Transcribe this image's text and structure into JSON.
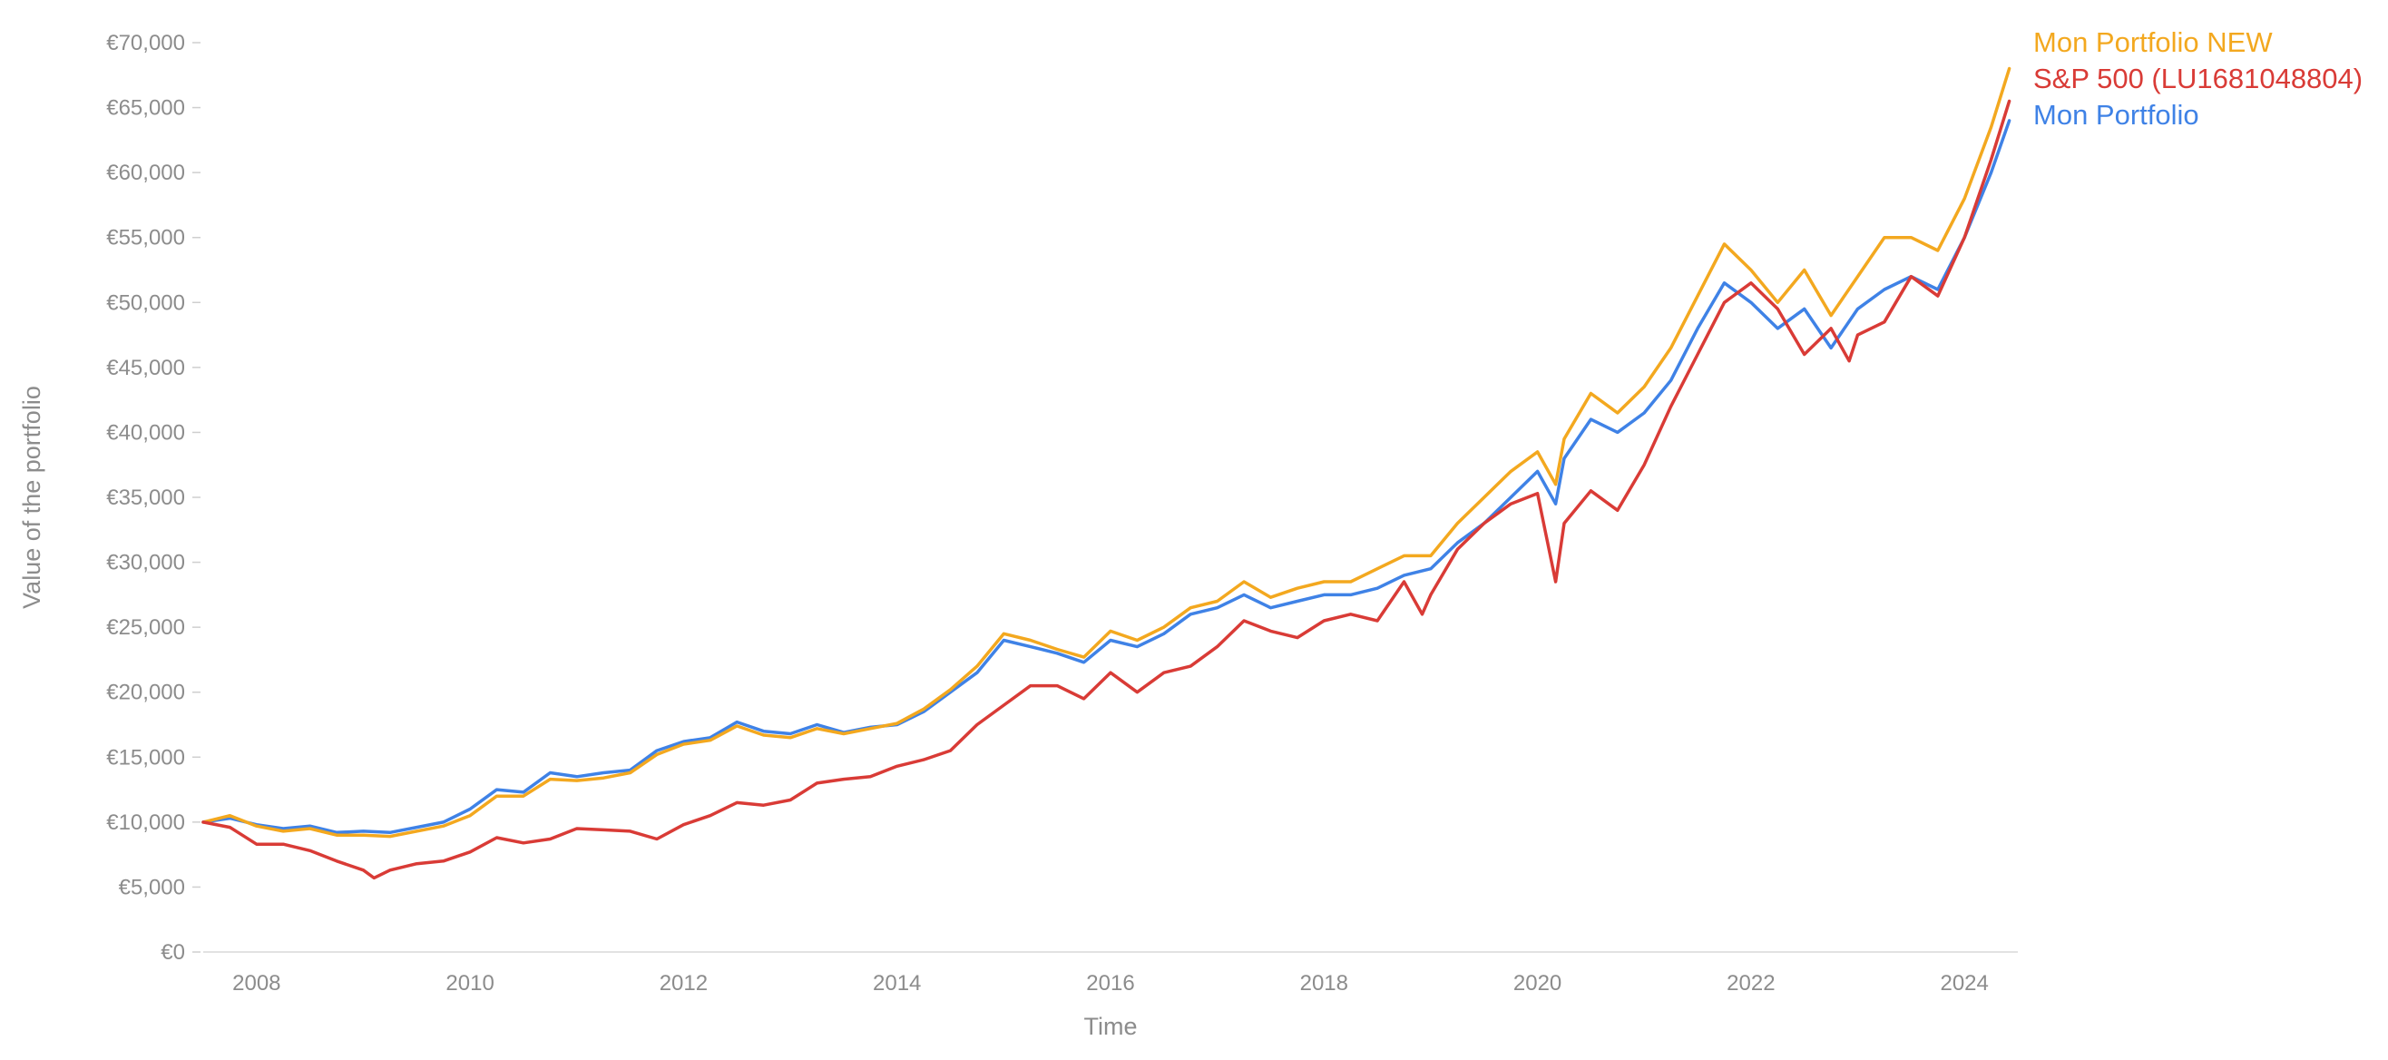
{
  "chart_data": {
    "type": "line",
    "title": "",
    "xlabel": "Time",
    "ylabel": "Value of the portfolio",
    "xlim": [
      2007.5,
      2024.5
    ],
    "ylim": [
      0,
      70000
    ],
    "grid": false,
    "legend_position": "right",
    "y_ticks": [
      0,
      5000,
      10000,
      15000,
      20000,
      25000,
      30000,
      35000,
      40000,
      45000,
      50000,
      55000,
      60000,
      65000,
      70000
    ],
    "y_tick_labels": [
      "€0",
      "€5,000",
      "€10,000",
      "€15,000",
      "€20,000",
      "€25,000",
      "€30,000",
      "€35,000",
      "€40,000",
      "€45,000",
      "€50,000",
      "€55,000",
      "€60,000",
      "€65,000",
      "€70,000"
    ],
    "x_ticks": [
      2008,
      2010,
      2012,
      2014,
      2016,
      2018,
      2020,
      2022,
      2024
    ],
    "x_tick_labels": [
      "2008",
      "2010",
      "2012",
      "2014",
      "2016",
      "2018",
      "2020",
      "2022",
      "2024"
    ],
    "series": [
      {
        "name": "Mon Portfolio",
        "color": "#3f82e6",
        "x": [
          2007.5,
          2007.75,
          2008.0,
          2008.25,
          2008.5,
          2008.75,
          2009.0,
          2009.25,
          2009.5,
          2009.75,
          2010.0,
          2010.25,
          2010.5,
          2010.75,
          2011.0,
          2011.25,
          2011.5,
          2011.75,
          2012.0,
          2012.25,
          2012.5,
          2012.75,
          2013.0,
          2013.25,
          2013.5,
          2013.75,
          2014.0,
          2014.25,
          2014.5,
          2014.75,
          2015.0,
          2015.25,
          2015.5,
          2015.75,
          2016.0,
          2016.25,
          2016.5,
          2016.75,
          2017.0,
          2017.25,
          2017.5,
          2017.75,
          2018.0,
          2018.25,
          2018.5,
          2018.75,
          2019.0,
          2019.25,
          2019.5,
          2019.75,
          2020.0,
          2020.17,
          2020.25,
          2020.5,
          2020.75,
          2021.0,
          2021.25,
          2021.5,
          2021.75,
          2022.0,
          2022.25,
          2022.5,
          2022.75,
          2023.0,
          2023.25,
          2023.5,
          2023.75,
          2024.0,
          2024.25,
          2024.42
        ],
        "values": [
          10000,
          10300,
          9800,
          9500,
          9700,
          9200,
          9300,
          9200,
          9600,
          10000,
          11000,
          12500,
          12300,
          13800,
          13500,
          13800,
          14000,
          15500,
          16200,
          16500,
          17700,
          17000,
          16800,
          17500,
          16900,
          17300,
          17500,
          18500,
          20000,
          21500,
          24000,
          23500,
          23000,
          22300,
          24000,
          23500,
          24500,
          26000,
          26500,
          27500,
          26500,
          27000,
          27500,
          27500,
          28000,
          29000,
          29500,
          31500,
          33000,
          35000,
          37000,
          34500,
          38000,
          41000,
          40000,
          41500,
          44000,
          48000,
          51500,
          50000,
          48000,
          49500,
          46500,
          49500,
          51000,
          52000,
          51000,
          55000,
          60000,
          64000
        ]
      },
      {
        "name": "Mon Portfolio NEW",
        "color": "#f3a81f",
        "x": [
          2007.5,
          2007.75,
          2008.0,
          2008.25,
          2008.5,
          2008.75,
          2009.0,
          2009.25,
          2009.5,
          2009.75,
          2010.0,
          2010.25,
          2010.5,
          2010.75,
          2011.0,
          2011.25,
          2011.5,
          2011.75,
          2012.0,
          2012.25,
          2012.5,
          2012.75,
          2013.0,
          2013.25,
          2013.5,
          2013.75,
          2014.0,
          2014.25,
          2014.5,
          2014.75,
          2015.0,
          2015.25,
          2015.5,
          2015.75,
          2016.0,
          2016.25,
          2016.5,
          2016.75,
          2017.0,
          2017.25,
          2017.5,
          2017.75,
          2018.0,
          2018.25,
          2018.5,
          2018.75,
          2019.0,
          2019.25,
          2019.5,
          2019.75,
          2020.0,
          2020.17,
          2020.25,
          2020.5,
          2020.75,
          2021.0,
          2021.25,
          2021.5,
          2021.75,
          2022.0,
          2022.25,
          2022.5,
          2022.75,
          2023.0,
          2023.25,
          2023.5,
          2023.75,
          2024.0,
          2024.25,
          2024.42
        ],
        "values": [
          10000,
          10500,
          9700,
          9300,
          9500,
          9000,
          9000,
          8900,
          9300,
          9700,
          10500,
          12000,
          12000,
          13300,
          13200,
          13400,
          13800,
          15200,
          16000,
          16300,
          17400,
          16700,
          16500,
          17200,
          16800,
          17200,
          17600,
          18700,
          20200,
          22000,
          24500,
          24000,
          23300,
          22700,
          24700,
          24000,
          25000,
          26500,
          27000,
          28500,
          27300,
          28000,
          28500,
          28500,
          29500,
          30500,
          30500,
          33000,
          35000,
          37000,
          38500,
          36000,
          39500,
          43000,
          41500,
          43500,
          46500,
          50500,
          54500,
          52500,
          50000,
          52500,
          49000,
          52000,
          55000,
          55000,
          54000,
          58000,
          63500,
          68000
        ]
      },
      {
        "name": "S&P 500 (LU1681048804)",
        "color": "#d93b36",
        "x": [
          2007.5,
          2007.75,
          2008.0,
          2008.25,
          2008.5,
          2008.75,
          2009.0,
          2009.1,
          2009.25,
          2009.5,
          2009.75,
          2010.0,
          2010.25,
          2010.5,
          2010.75,
          2011.0,
          2011.25,
          2011.5,
          2011.75,
          2012.0,
          2012.25,
          2012.5,
          2012.75,
          2013.0,
          2013.25,
          2013.5,
          2013.75,
          2014.0,
          2014.25,
          2014.5,
          2014.75,
          2015.0,
          2015.25,
          2015.5,
          2015.75,
          2016.0,
          2016.25,
          2016.5,
          2016.75,
          2017.0,
          2017.25,
          2017.5,
          2017.75,
          2018.0,
          2018.25,
          2018.5,
          2018.75,
          2018.92,
          2019.0,
          2019.25,
          2019.5,
          2019.75,
          2020.0,
          2020.17,
          2020.25,
          2020.5,
          2020.75,
          2021.0,
          2021.25,
          2021.5,
          2021.75,
          2022.0,
          2022.25,
          2022.5,
          2022.75,
          2022.92,
          2023.0,
          2023.25,
          2023.5,
          2023.75,
          2024.0,
          2024.25,
          2024.42
        ],
        "values": [
          10000,
          9600,
          8300,
          8300,
          7800,
          7000,
          6300,
          5700,
          6300,
          6800,
          7000,
          7700,
          8800,
          8400,
          8700,
          9500,
          9400,
          9300,
          8700,
          9800,
          10500,
          11500,
          11300,
          11700,
          13000,
          13300,
          13500,
          14300,
          14800,
          15500,
          17500,
          19000,
          20500,
          20500,
          19500,
          21500,
          20000,
          21500,
          22000,
          23500,
          25500,
          24700,
          24200,
          25500,
          26000,
          25500,
          28500,
          26000,
          27500,
          31000,
          33000,
          34500,
          35300,
          28500,
          33000,
          35500,
          34000,
          37500,
          42000,
          46000,
          50000,
          51500,
          49500,
          46000,
          48000,
          45500,
          47500,
          48500,
          52000,
          50500,
          55000,
          61000,
          65500
        ]
      }
    ]
  }
}
